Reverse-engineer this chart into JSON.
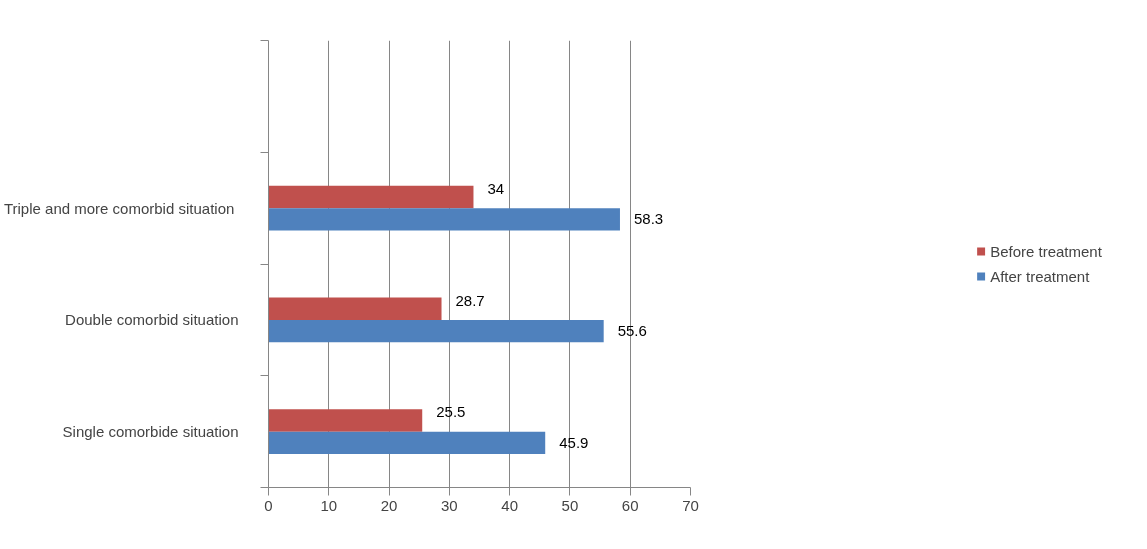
{
  "chart_data": {
    "type": "bar",
    "orientation": "horizontal",
    "categories": [
      null,
      "Triple  and more comorbid situation",
      "Double comorbid situation",
      "Single comorbide situation"
    ],
    "series": [
      {
        "name": "Before treatment",
        "color": "#c0504d",
        "values": [
          null,
          34,
          28.7,
          25.5
        ]
      },
      {
        "name": "After treatment",
        "color": "#4f81bd",
        "values": [
          null,
          58.3,
          55.6,
          45.9
        ]
      }
    ],
    "xlim": [
      0,
      70
    ],
    "xticks": [
      0,
      10,
      20,
      30,
      40,
      50,
      60,
      70
    ],
    "grid": "x",
    "legend": "right",
    "data_labels": true
  }
}
